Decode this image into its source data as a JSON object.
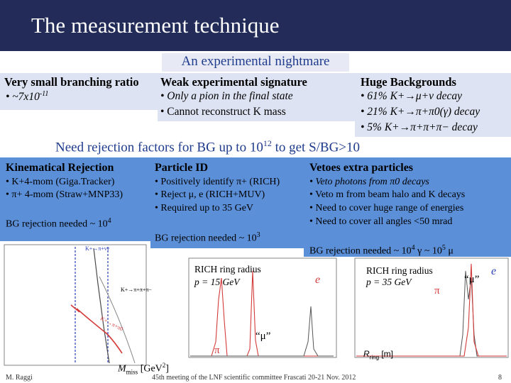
{
  "title": "The measurement technique",
  "subtitle": "An experimental nightmare",
  "columns": [
    {
      "header": "Very small branching ratio",
      "items": [
        "• ~7x10"
      ],
      "sup": "-11"
    },
    {
      "header": "Weak experimental signature",
      "items": [
        "• Only a pion in the final state",
        "• Cannot reconstruct K mass"
      ]
    },
    {
      "header": "Huge Backgrounds",
      "items": [
        "• 61% K+→μ+ν decay",
        "• 21% K+→π+π0(γ) decay",
        "• 5% K+→π+π+π− decay"
      ]
    }
  ],
  "need_text": "Need rejection factors for BG up to 10",
  "need_exp": "12",
  "need_tail": " to get S/BG>10",
  "panels": {
    "kinematical": {
      "header": "Kinematical Rejection",
      "items": [
        "• K+4-mom (Giga.Tracker)",
        "• π+ 4-mom (Straw+MNP33)"
      ],
      "bg": "BG rejection needed ~ 10",
      "bg_exp": "4"
    },
    "pid": {
      "header": "Particle ID",
      "items": [
        "• Positively identify π+ (RICH)",
        "• Reject μ, e (RICH+MUV)",
        "• Required up to 35 GeV"
      ],
      "bg": "BG rejection needed ~ 10",
      "bg_exp": "3"
    },
    "vetoes": {
      "header": "Vetoes extra particles",
      "items": [
        "• Veto photons from π0 decays",
        "• Veto m from beam halo and K decays",
        "• Need to cover huge range of energies",
        "• Need to cover all angles <50 mrad"
      ],
      "bg": "BG rejection needed ~ 10",
      "bg_exp1": "4",
      "bg_mid": " γ ~ 10",
      "bg_exp2": "5",
      "bg_tail": " μ"
    }
  },
  "plots": {
    "left": {
      "label_k": "K+→π+νν",
      "label_bg": "K+→π+π+π−",
      "label_red": "K+→π+π0",
      "axis": "M",
      "axis_sub": "miss",
      "axis_unit": " [GeV",
      "axis_unit_sup": "2",
      "axis_end": "]"
    },
    "middle": {
      "title1": "RICH ring radius",
      "title2": "p = 15 GeV",
      "e": "e",
      "mu": "“μ”",
      "pi": "π"
    },
    "right": {
      "title1": "RICH ring radius",
      "title2": "p = 35 GeV",
      "e": "e",
      "mu": "“μ”",
      "pi": "π",
      "axis": "R",
      "axis_sub": "ring",
      "axis_unit": " [m]"
    }
  },
  "footer": {
    "author": "M. Raggi",
    "meeting": "45th meeting of the LNF scientific committee Frascati 20-21 Nov. 2012",
    "page": "8"
  },
  "colors": {
    "title_bg": "#232c58",
    "panel_blue": "#5b8fd8",
    "text_blue": "#1f3b8c"
  }
}
